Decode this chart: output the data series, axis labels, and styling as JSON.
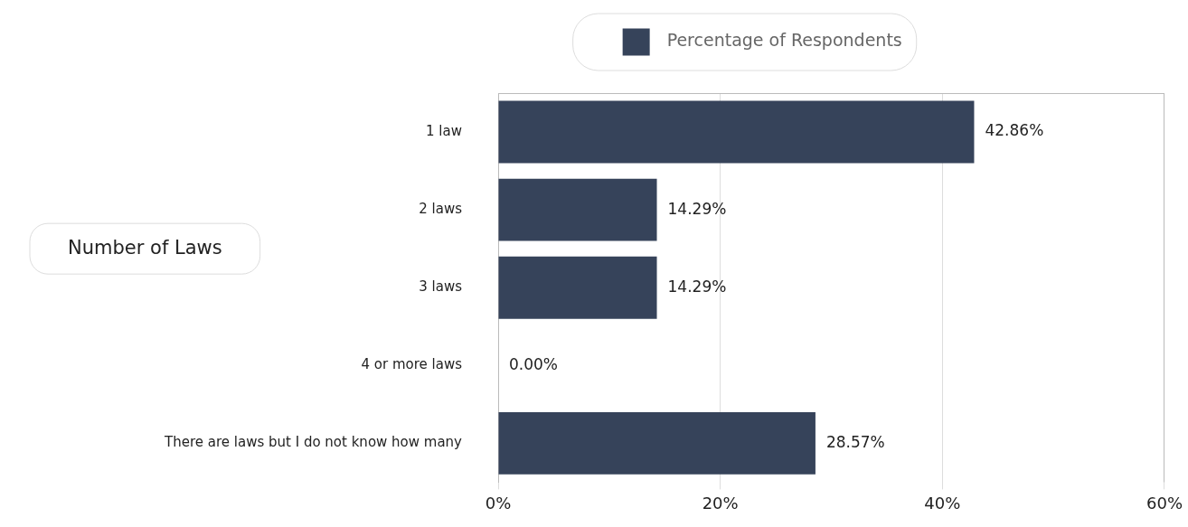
{
  "chart_data": {
    "type": "bar",
    "orientation": "horizontal",
    "categories": [
      "1 law",
      "2 laws",
      "3 laws",
      "4 or more laws",
      "There are laws but I do not know how many"
    ],
    "series": [
      {
        "name": "Percentage of Respondents",
        "color": "#36435a",
        "values": [
          42.86,
          14.29,
          14.29,
          0,
          28.57
        ],
        "value_labels": [
          "42.86%",
          "14.29%",
          "14.29%",
          "0.00%",
          "28.57%"
        ]
      }
    ],
    "xlim": [
      0,
      60
    ],
    "xticks": [
      {
        "value": 0,
        "label": "0%"
      },
      {
        "value": 20,
        "label": "20%"
      },
      {
        "value": 40,
        "label": "40%"
      },
      {
        "value": 60,
        "label": "60%"
      }
    ],
    "ylabel": "Number of Laws",
    "grid": "x",
    "legend": "top"
  }
}
